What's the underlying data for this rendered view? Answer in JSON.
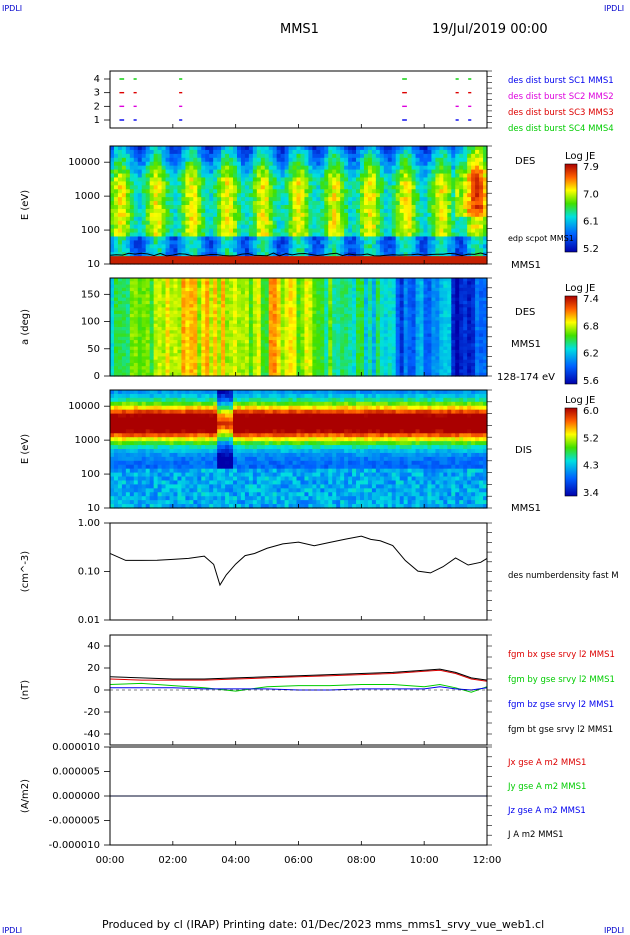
{
  "header": {
    "corner_tl": "IPDLI",
    "corner_tr": "IPDLI",
    "mission": "MMS1",
    "date": "19/Jul/2019 00:00"
  },
  "footer": {
    "text": "Produced by cl (IRAP)   Printing date: 01/Dec/2023   mms_mms1_srvy_vue_web1.cl",
    "corner_bl": "IPDLI",
    "corner_br": "IPDLI"
  },
  "colors": {
    "blue": "#0000ee",
    "magenta": "#dd00dd",
    "red": "#dd0000",
    "green": "#00cc00",
    "black": "#000000"
  },
  "chart_data": [
    {
      "type": "scatter",
      "name": "burst",
      "yticks": [
        "1",
        "2",
        "3",
        "4"
      ],
      "xlim_hours": [
        0,
        12
      ],
      "legend": [
        {
          "text": "des dist burst SC1 MMS1",
          "color": "blue"
        },
        {
          "text": "des dist burst SC2 MMS2",
          "color": "magenta"
        },
        {
          "text": "des dist burst SC3 MMS3",
          "color": "red"
        },
        {
          "text": "des dist burst SC4 MMS4",
          "color": "green"
        }
      ],
      "intervals_hours": [
        [
          0.3,
          0.45
        ],
        [
          0.75,
          0.85
        ],
        [
          2.2,
          2.3
        ],
        [
          9.3,
          9.45
        ],
        [
          11.0,
          11.1
        ],
        [
          11.4,
          11.5
        ]
      ]
    },
    {
      "type": "heatmap",
      "name": "des-energy",
      "ylabel": "E (eV)",
      "yticks": [
        "10",
        "100",
        "1000",
        "10000"
      ],
      "ylim": [
        10,
        30000
      ],
      "yscale": "log",
      "labels": [
        "DES",
        "edp scpot MMS1",
        "MMS1"
      ],
      "colorbar": {
        "title": "Log JE",
        "ticks": [
          "7.9",
          "7.0",
          "6.1",
          "5.2"
        ]
      }
    },
    {
      "type": "heatmap",
      "name": "des-pitch",
      "ylabel": "a (deg)",
      "yticks": [
        "0",
        "50",
        "100",
        "150"
      ],
      "ylim": [
        0,
        180
      ],
      "labels": [
        "DES",
        "MMS1",
        "128-174 eV"
      ],
      "colorbar": {
        "title": "Log JE",
        "ticks": [
          "7.4",
          "6.8",
          "6.2",
          "5.6"
        ]
      }
    },
    {
      "type": "heatmap",
      "name": "dis-energy",
      "ylabel": "E (eV)",
      "yticks": [
        "10",
        "100",
        "1000",
        "10000"
      ],
      "ylim": [
        10,
        30000
      ],
      "yscale": "log",
      "labels": [
        "DIS",
        "MMS1"
      ],
      "colorbar": {
        "title": "Log JE",
        "ticks": [
          "6.0",
          "5.2",
          "4.3",
          "3.4"
        ]
      }
    },
    {
      "type": "line",
      "name": "density",
      "ylabel": "(cm^-3)",
      "yticks": [
        "0.01",
        "0.10",
        "1.00"
      ],
      "ylim": [
        0.01,
        1.0
      ],
      "yscale": "log",
      "legend": [
        {
          "text": "des numberdensity fast M",
          "color": "black"
        }
      ],
      "x_hours": [
        0,
        0.5,
        1,
        1.5,
        2,
        2.5,
        3,
        3.3,
        3.5,
        3.7,
        4,
        4.3,
        4.6,
        5,
        5.5,
        6,
        6.5,
        7,
        7.5,
        8,
        8.3,
        8.6,
        9,
        9.4,
        9.8,
        10.2,
        10.6,
        11,
        11.4,
        11.8,
        12
      ],
      "values": [
        0.25,
        0.18,
        0.16,
        0.17,
        0.17,
        0.19,
        0.2,
        0.15,
        0.05,
        0.08,
        0.15,
        0.2,
        0.25,
        0.3,
        0.35,
        0.4,
        0.33,
        0.38,
        0.45,
        0.5,
        0.48,
        0.42,
        0.36,
        0.18,
        0.1,
        0.09,
        0.12,
        0.2,
        0.14,
        0.16,
        0.2
      ]
    },
    {
      "type": "line",
      "name": "magnetic-field",
      "ylabel": "(nT)",
      "yticks": [
        "-40",
        "-20",
        "0",
        "20",
        "40"
      ],
      "ylim": [
        -50,
        50
      ],
      "x_hours": [
        0,
        1,
        2,
        3,
        4,
        5,
        6,
        7,
        8,
        9,
        10,
        10.5,
        11,
        11.5,
        12
      ],
      "series": [
        {
          "name": "fgm bx gse srvy l2 MMS1",
          "color": "red",
          "values": [
            10,
            9,
            9,
            9,
            10,
            11,
            12,
            13,
            14,
            15,
            17,
            18,
            15,
            10,
            8
          ]
        },
        {
          "name": "fgm by gse srvy l2 MMS1",
          "color": "green",
          "values": [
            5,
            6,
            4,
            2,
            -1,
            3,
            4,
            4,
            5,
            5,
            3,
            5,
            2,
            -2,
            3
          ]
        },
        {
          "name": "fgm bz gse srvy l2 MMS1",
          "color": "blue",
          "values": [
            2,
            2,
            2,
            1,
            1,
            1,
            0,
            0,
            1,
            1,
            1,
            3,
            1,
            0,
            2
          ]
        },
        {
          "name": "fgm bt gse srvy l2 MMS1",
          "color": "black",
          "values": [
            12,
            11,
            10,
            10,
            11,
            12,
            13,
            14,
            15,
            16,
            18,
            19,
            16,
            11,
            9
          ]
        }
      ]
    },
    {
      "type": "line",
      "name": "current-density",
      "ylabel": "(A/m2)",
      "yticks": [
        "-0.000010",
        "-0.000005",
        "0.000000",
        "0.000005",
        "0.000010"
      ],
      "ylim": [
        -1e-05,
        1e-05
      ],
      "xticks": [
        "00:00",
        "02:00",
        "04:00",
        "06:00",
        "08:00",
        "10:00",
        "12:00"
      ],
      "x_hours": [
        0,
        12
      ],
      "series": [
        {
          "name": "Jx gse A m2 MMS1",
          "color": "red",
          "values": [
            0,
            0
          ]
        },
        {
          "name": "Jy gse A m2 MMS1",
          "color": "green",
          "values": [
            0,
            0
          ]
        },
        {
          "name": "Jz gse A m2 MMS1",
          "color": "blue",
          "values": [
            0,
            0
          ]
        },
        {
          "name": "J A m2 MMS1",
          "color": "black",
          "values": [
            0,
            0
          ]
        }
      ]
    }
  ]
}
